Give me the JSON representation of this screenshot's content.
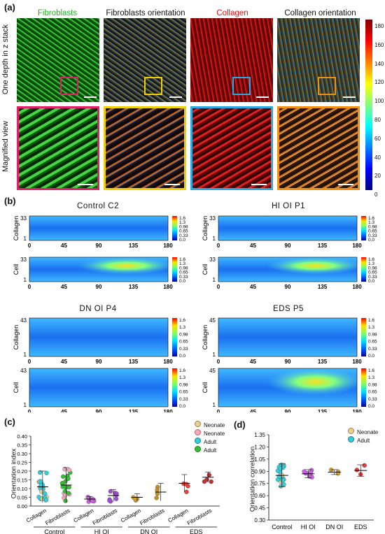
{
  "panel_labels": {
    "a": "(a)",
    "b": "(b)",
    "c": "(c)",
    "d": "(d)"
  },
  "panel_a": {
    "column_titles": [
      {
        "text": "Fibroblasts",
        "color": "#22b322"
      },
      {
        "text": "Fibroblasts orientation",
        "color": "#111111"
      },
      {
        "text": "Collagen",
        "color": "#e01010"
      },
      {
        "text": "Collagen orientation",
        "color": "#111111"
      }
    ],
    "row_labels": [
      "One depth in z stack",
      "Magnified view"
    ],
    "roi_colors": [
      "#e0206a",
      "#f0d000",
      "#2aa8e0",
      "#f09010"
    ],
    "colorbar_ticks": [
      "180",
      "160",
      "140",
      "120",
      "100",
      "80",
      "60",
      "40",
      "20",
      "0"
    ]
  },
  "panel_b": {
    "titles": [
      "Control  C2",
      "HI  OI  P1",
      "DN  OI  P4",
      "EDS  P5"
    ],
    "row_labels": [
      "Collagen",
      "Cell"
    ],
    "x_ticks": [
      "0",
      "45",
      "90",
      "135",
      "180"
    ],
    "y_ticks": [
      [
        "33",
        "1"
      ],
      [
        "33",
        "1"
      ],
      [
        "43",
        "1"
      ],
      [
        "45",
        "1"
      ]
    ],
    "cb_ticks": [
      "1.6",
      "1.3",
      "0.98",
      "0.65",
      "0.33",
      "0.0"
    ]
  },
  "panel_c": {
    "ylabel": "Orientation index",
    "y_ticks": [
      "0.40",
      "0.35",
      "0.30",
      "0.25",
      "0.20",
      "0.15",
      "0.10",
      "0.05",
      "0.00"
    ],
    "x_labels": [
      "Collagen",
      "Fibroblasts",
      "Collagen",
      "Fibroblasts",
      "Collagen",
      "Fibroblasts",
      "Collagen",
      "Fibroblasts"
    ],
    "group_labels": [
      "Control",
      "HI  OI",
      "DN  OI",
      "EDS"
    ],
    "legend": [
      {
        "label": "Neonate",
        "color": "#e8d09a"
      },
      {
        "label": "Neonate",
        "color": "#f4a8b8"
      },
      {
        "label": "Adult",
        "color": "#30d0d8"
      },
      {
        "label": "Adult",
        "color": "#30c030"
      }
    ]
  },
  "panel_d": {
    "ylabel": "Orientation correlation",
    "y_ticks": [
      "1.35",
      "1.20",
      "1.05",
      "0.90",
      "0.75",
      "0.60",
      "0.45",
      "0.30"
    ],
    "x_labels": [
      "Control",
      "HI OI",
      "DN OI",
      "EDS"
    ],
    "legend": [
      {
        "label": "Neonate",
        "color": "#e8d09a"
      },
      {
        "label": "Adult",
        "color": "#30d0d8"
      }
    ]
  },
  "chart_data": [
    {
      "type": "scatter",
      "ylabel": "Orientation index",
      "ylim": [
        0,
        0.4
      ],
      "categories": [
        "Control Collagen",
        "Control Fibroblasts",
        "HI OI Collagen",
        "HI OI Fibroblasts",
        "DN OI Collagen",
        "DN OI Fibroblasts",
        "EDS Collagen",
        "EDS Fibroblasts"
      ],
      "means": [
        0.11,
        0.12,
        0.04,
        0.06,
        0.05,
        0.08,
        0.13,
        0.165
      ],
      "sd": [
        0.09,
        0.1,
        0.015,
        0.035,
        0.02,
        0.05,
        0.05,
        0.03
      ]
    },
    {
      "type": "scatter",
      "ylabel": "Orientation correlation",
      "ylim": [
        0.3,
        1.35
      ],
      "categories": [
        "Control",
        "HI OI",
        "DN OI",
        "EDS"
      ],
      "means": [
        0.85,
        0.87,
        0.89,
        0.91
      ],
      "sd": [
        0.14,
        0.05,
        0.03,
        0.07
      ]
    }
  ]
}
